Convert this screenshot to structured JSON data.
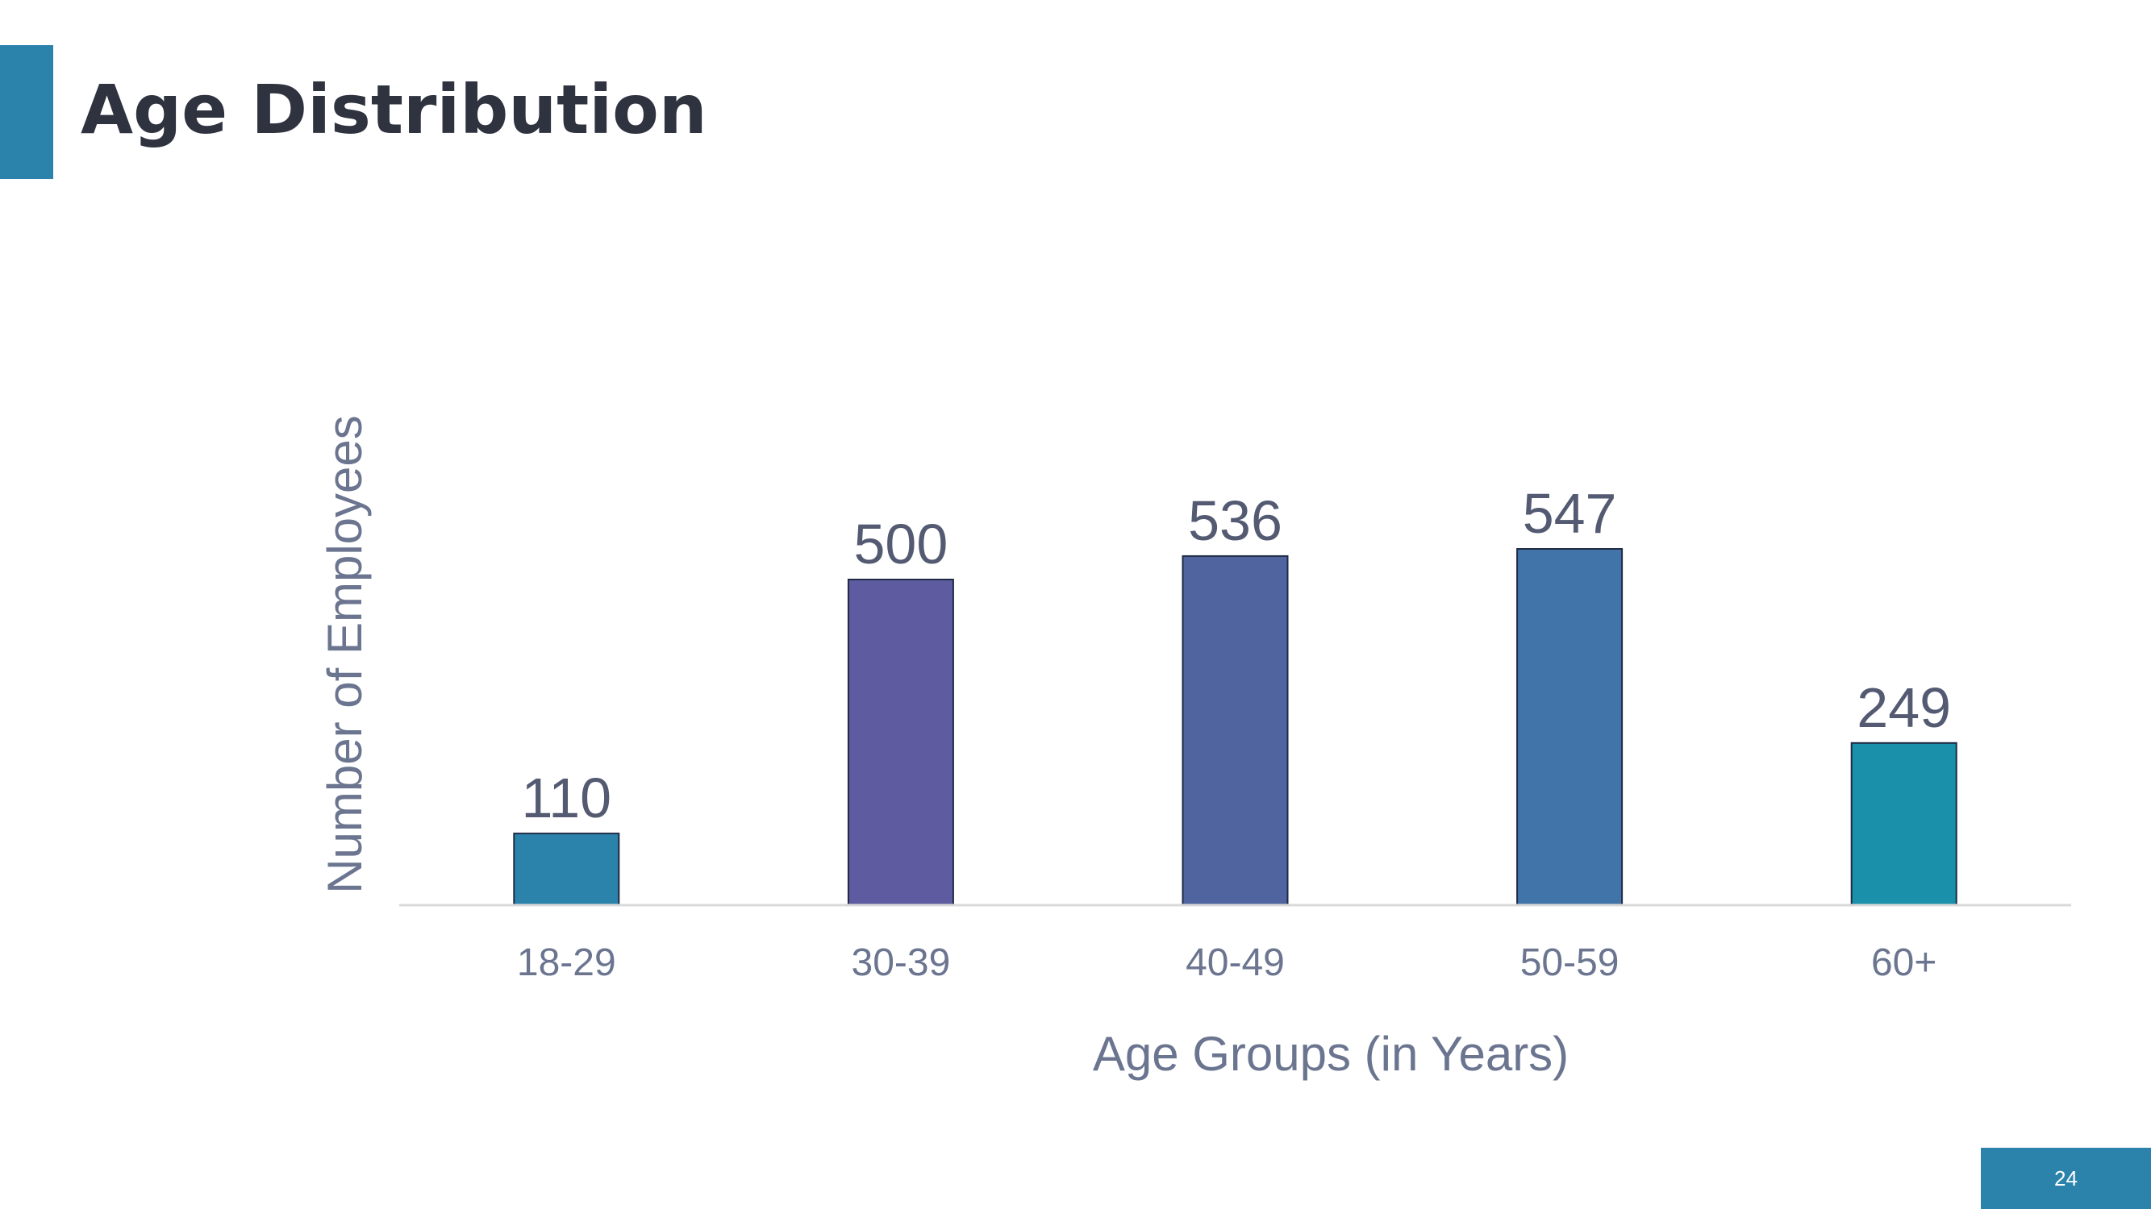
{
  "slide": {
    "title": "Age Distribution",
    "page_number": "24"
  },
  "colors": {
    "accent": "#2b83ac",
    "title_text": "#2f3340",
    "axis_text": "#6b7590",
    "label_text": "#535a72",
    "bar_outline": "#1f2a44",
    "baseline": "#d9d9d9"
  },
  "chart_data": {
    "type": "bar",
    "title": "",
    "xlabel": "Age Groups (in Years)",
    "ylabel": "Number of Employees",
    "categories": [
      "18-29",
      "30-39",
      "40-49",
      "50-59",
      "60+"
    ],
    "values": [
      110,
      500,
      536,
      547,
      249
    ],
    "data_labels": [
      "110",
      "500",
      "536",
      "547",
      "249"
    ],
    "bar_colors": [
      "#2b83ac",
      "#5f5ba0",
      "#5065a0",
      "#4174a8",
      "#1a90aa"
    ],
    "ylim": [
      0,
      600
    ],
    "grid": false,
    "legend": "none"
  }
}
